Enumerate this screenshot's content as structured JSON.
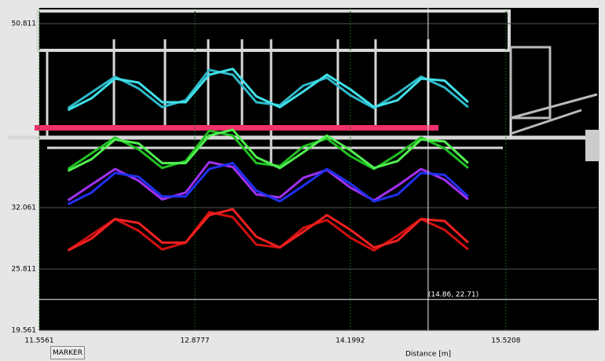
{
  "chart_data": {
    "type": "line",
    "x_label": "Distance [m]",
    "x": [
      11.8,
      12.0,
      12.2,
      12.4,
      12.6,
      12.8,
      13.0,
      13.2,
      13.4,
      13.6,
      13.8,
      14.0,
      14.2,
      14.4,
      14.6,
      14.8,
      15.0,
      15.2
    ],
    "series": [
      {
        "color": "#2fb8c8",
        "values": [
          42.2,
          43.8,
          45.4,
          44.2,
          42.3,
          43.0,
          46.1,
          45.6,
          42.8,
          42.5,
          44.5,
          45.3,
          43.5,
          42.2,
          43.7,
          45.4,
          44.3,
          42.3
        ]
      },
      {
        "color": "#40e0e8",
        "values": [
          42.0,
          43.2,
          45.2,
          44.8,
          42.8,
          42.8,
          45.6,
          46.2,
          43.4,
          42.3,
          43.9,
          45.6,
          44.1,
          42.3,
          43.0,
          45.2,
          45.0,
          42.8
        ]
      },
      {
        "color": "#22c022",
        "values": [
          36.0,
          37.6,
          39.2,
          38.0,
          36.1,
          36.8,
          39.9,
          39.4,
          36.6,
          36.3,
          38.3,
          39.1,
          37.3,
          36.0,
          37.5,
          39.2,
          38.1,
          36.1
        ]
      },
      {
        "color": "#50f050",
        "values": [
          35.8,
          37.0,
          39.0,
          38.6,
          36.6,
          36.6,
          39.4,
          40.0,
          37.2,
          36.1,
          37.7,
          39.4,
          37.9,
          36.1,
          36.8,
          39.0,
          38.8,
          36.6
        ]
      },
      {
        "color": "#a030f0",
        "values": [
          32.8,
          34.4,
          36.0,
          34.8,
          32.9,
          33.6,
          36.7,
          36.2,
          33.4,
          33.1,
          35.1,
          35.9,
          34.1,
          32.8,
          34.3,
          36.0,
          34.9,
          32.9
        ]
      },
      {
        "color": "#2030f0",
        "values": [
          32.4,
          33.6,
          35.6,
          35.2,
          33.2,
          33.2,
          36.0,
          36.6,
          33.8,
          32.7,
          34.3,
          36.0,
          34.5,
          32.7,
          33.4,
          35.6,
          35.4,
          33.2
        ]
      },
      {
        "color": "#d01010",
        "values": [
          27.7,
          29.3,
          30.9,
          29.7,
          27.8,
          28.5,
          31.6,
          31.1,
          28.3,
          28.0,
          30.0,
          30.8,
          29.0,
          27.7,
          29.2,
          30.9,
          29.8,
          27.8
        ]
      },
      {
        "color": "#f02020",
        "values": [
          27.7,
          28.9,
          30.9,
          30.5,
          28.5,
          28.5,
          31.3,
          31.9,
          29.1,
          28.0,
          29.6,
          31.3,
          29.8,
          28.0,
          28.7,
          30.9,
          30.7,
          28.5
        ]
      }
    ],
    "xlim": [
      11.5561,
      16.296
    ],
    "ylim": [
      19.561,
      50.811
    ],
    "xticks": [
      11.5561,
      12.8777,
      14.1992,
      15.5208
    ],
    "yticks": [
      19.561,
      25.811,
      32.061,
      50.811
    ],
    "grid": true,
    "marker": {
      "x": 14.86,
      "y": 22.71,
      "label": "(14.86, 22.71)"
    }
  },
  "ui": {
    "button": "MARKER"
  }
}
